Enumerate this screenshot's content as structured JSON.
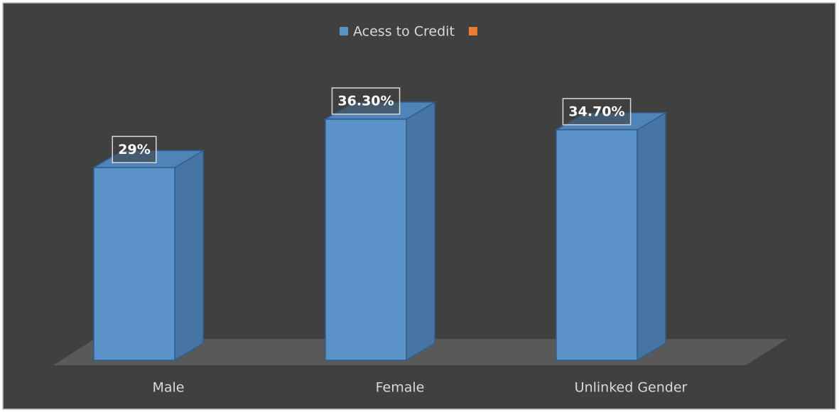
{
  "chart_data": {
    "type": "bar",
    "categories": [
      "Male",
      "Female",
      "Unlinked Gender"
    ],
    "series": [
      {
        "name": "Acess to Credit",
        "color": "#5b93c9",
        "values": [
          29,
          36.3,
          34.7
        ],
        "value_labels": [
          "29%",
          "36.30%",
          "34.70%"
        ]
      },
      {
        "color": "#ed7d31",
        "values": [
          null,
          null,
          null
        ]
      }
    ],
    "legend": "top"
  }
}
